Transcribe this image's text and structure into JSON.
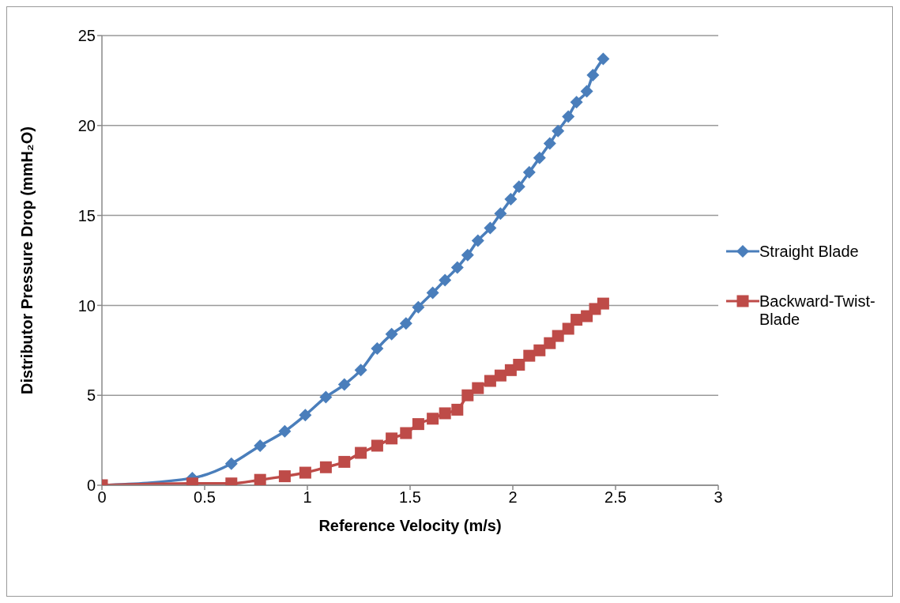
{
  "chart_data": {
    "type": "line",
    "xlabel": "Reference Velocity (m/s)",
    "ylabel": "Distributor Pressure Drop (mmH₂O)",
    "xlim": [
      0,
      3
    ],
    "xticks": [
      0,
      0.5,
      1,
      1.5,
      2,
      2.5,
      3
    ],
    "ylim": [
      0,
      25
    ],
    "yticks": [
      0,
      5,
      10,
      15,
      20,
      25
    ],
    "grid": "y",
    "legend": "right",
    "line_style": "solid",
    "series": [
      {
        "name": "Straight Blade",
        "color": "#4a7ebb",
        "marker": "diamond",
        "x": [
          0,
          0.44,
          0.63,
          0.77,
          0.89,
          0.99,
          1.09,
          1.18,
          1.26,
          1.34,
          1.41,
          1.48,
          1.54,
          1.61,
          1.67,
          1.73,
          1.78,
          1.83,
          1.89,
          1.94,
          1.99,
          2.03,
          2.08,
          2.13,
          2.18,
          2.22,
          2.27,
          2.31,
          2.36,
          2.39,
          2.44
        ],
        "values": [
          0,
          0.4,
          1.2,
          2.2,
          3.0,
          3.9,
          4.9,
          5.6,
          6.4,
          7.6,
          8.4,
          9.0,
          9.9,
          10.7,
          11.4,
          12.1,
          12.8,
          13.6,
          14.3,
          15.1,
          15.9,
          16.6,
          17.4,
          18.2,
          19.0,
          19.7,
          20.5,
          21.3,
          21.9,
          22.8,
          23.7
        ]
      },
      {
        "name": "Backward-Twist-Blade",
        "color": "#be4b48",
        "marker": "square",
        "x": [
          0,
          0.44,
          0.63,
          0.77,
          0.89,
          0.99,
          1.09,
          1.18,
          1.26,
          1.34,
          1.41,
          1.48,
          1.54,
          1.61,
          1.67,
          1.73,
          1.78,
          1.83,
          1.89,
          1.94,
          1.99,
          2.03,
          2.08,
          2.13,
          2.18,
          2.22,
          2.27,
          2.31,
          2.36,
          2.4,
          2.44
        ],
        "values": [
          0,
          0.1,
          0.1,
          0.3,
          0.5,
          0.7,
          1.0,
          1.3,
          1.8,
          2.2,
          2.6,
          2.9,
          3.4,
          3.7,
          4.0,
          4.2,
          5.0,
          5.4,
          5.8,
          6.1,
          6.4,
          6.7,
          7.2,
          7.5,
          7.9,
          8.3,
          8.7,
          9.2,
          9.4,
          9.8,
          10.1
        ]
      }
    ]
  }
}
